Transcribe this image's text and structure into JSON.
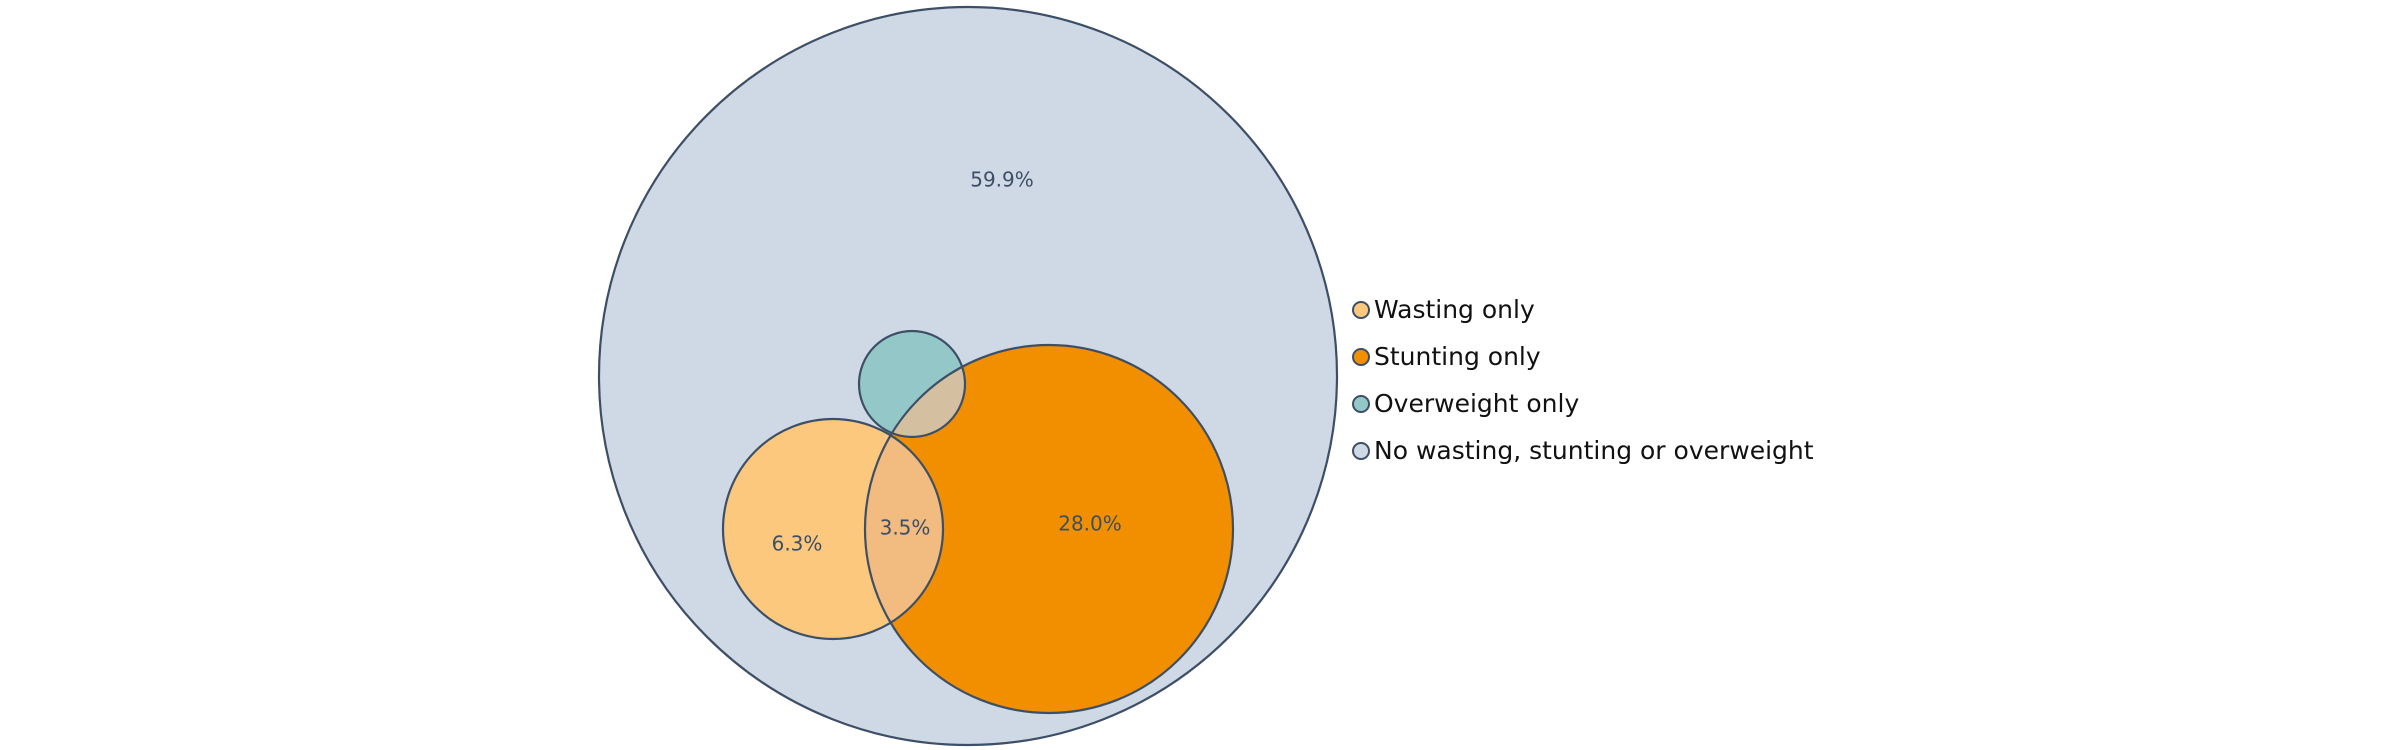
{
  "chart_data": {
    "type": "venn",
    "sets": [
      {
        "id": "none",
        "name": "No wasting, stunting or overweight",
        "color": "#cfd9e5"
      },
      {
        "id": "stunting",
        "name": "Stunting only",
        "color": "#f28f00"
      },
      {
        "id": "wasting",
        "name": "Wasting only",
        "color": "#fbc87d"
      },
      {
        "id": "overweight",
        "name": "Overweight only",
        "color": "#94c8c8"
      }
    ],
    "regions": [
      {
        "sets": [
          "none"
        ],
        "label": "59.9%",
        "value": 59.9
      },
      {
        "sets": [
          "wasting"
        ],
        "label": "6.3%",
        "value": 6.3
      },
      {
        "sets": [
          "wasting",
          "stunting"
        ],
        "label": "3.5%",
        "value": 3.5
      },
      {
        "sets": [
          "stunting"
        ],
        "label": "28.0%",
        "value": 28.0
      }
    ],
    "overlap_colors": {
      "wasting_stunting": "#f2bb80",
      "overweight_stunting": "#d4c0a0"
    },
    "outline_color": "#3d4f66",
    "label_color": "#3d4f66",
    "legend": {
      "placement": "right",
      "items": [
        {
          "set": "wasting",
          "label": "Wasting only",
          "color": "#fbc87d"
        },
        {
          "set": "stunting",
          "label": "Stunting only",
          "color": "#f28f00"
        },
        {
          "set": "overweight",
          "label": "Overweight only",
          "color": "#94c8c8"
        },
        {
          "set": "none",
          "label": "No wasting, stunting or overweight",
          "color": "#cfd9e5"
        }
      ]
    }
  }
}
